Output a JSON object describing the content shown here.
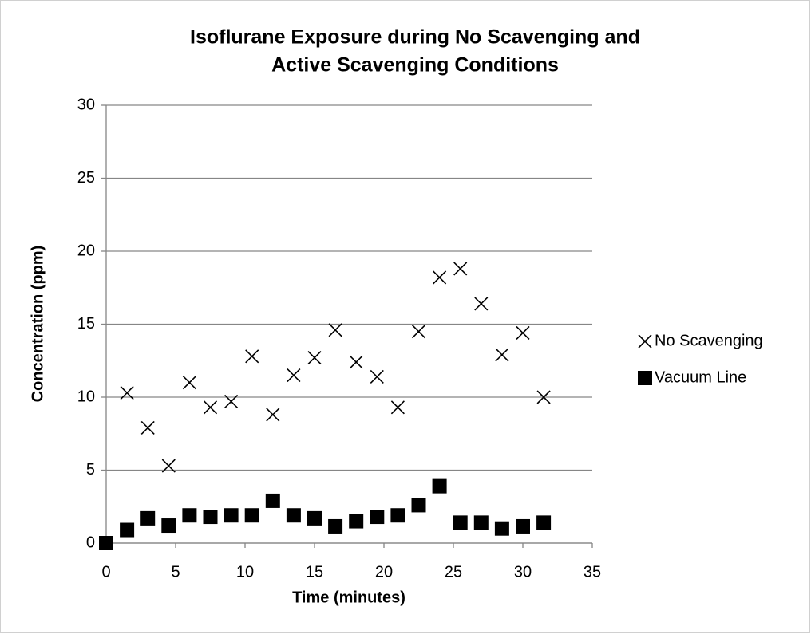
{
  "chart_data": {
    "type": "scatter",
    "title": [
      "Isoflurane Exposure during No Scavenging and",
      "Active Scavenging Conditions"
    ],
    "xlabel": "Time (minutes)",
    "ylabel": "Concentration (ppm)",
    "xlim": [
      0,
      35
    ],
    "xticks": [
      0,
      5,
      10,
      15,
      20,
      25,
      30,
      35
    ],
    "ylim": [
      0,
      30
    ],
    "yticks": [
      0,
      5,
      10,
      15,
      20,
      25,
      30
    ],
    "grid": true,
    "legend": "right",
    "series": [
      {
        "name": "No Scavenging",
        "color": "#000000",
        "marker": "x",
        "x": [
          1.5,
          3,
          4.5,
          6,
          7.5,
          9,
          10.5,
          12,
          13.5,
          15,
          16.5,
          18,
          19.5,
          21,
          22.5,
          24,
          25.5,
          27,
          28.5,
          30,
          31.5
        ],
        "values": [
          10.3,
          7.9,
          5.3,
          11.0,
          9.3,
          9.7,
          12.8,
          8.8,
          11.5,
          12.7,
          14.6,
          12.4,
          11.4,
          9.3,
          14.5,
          18.2,
          18.8,
          16.4,
          12.9,
          14.4,
          10.0
        ]
      },
      {
        "name": "Vacuum Line",
        "color": "#000000",
        "marker": "square",
        "x": [
          0,
          1.5,
          3,
          4.5,
          6,
          7.5,
          9,
          10.5,
          12,
          13.5,
          15,
          16.5,
          18,
          19.5,
          21,
          22.5,
          24,
          25.5,
          27,
          28.5,
          30,
          31.5
        ],
        "values": [
          0,
          0.9,
          1.7,
          1.2,
          1.9,
          1.8,
          1.9,
          1.9,
          2.9,
          1.9,
          1.7,
          1.15,
          1.5,
          1.8,
          1.9,
          2.6,
          3.9,
          1.4,
          1.4,
          1.0,
          1.15,
          1.4
        ]
      }
    ]
  }
}
